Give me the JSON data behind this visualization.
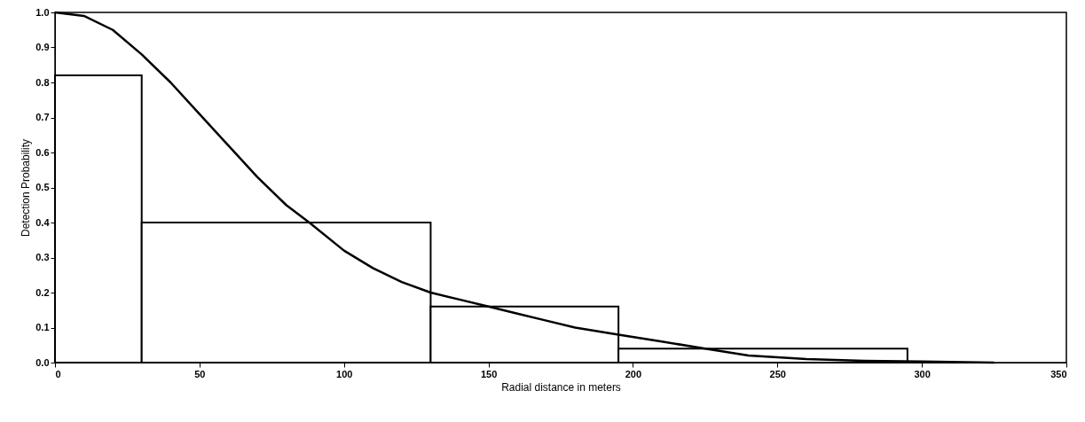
{
  "chart_data": {
    "type": "histogram",
    "xlabel": "Radial distance in meters",
    "ylabel": "Detection Probability",
    "bins": [
      0,
      30,
      130,
      195,
      295
    ],
    "values": [
      0.82,
      0.4,
      0.16,
      0.04
    ],
    "color": "#000000",
    "series": [
      {
        "type": "line",
        "color": "#000000",
        "x": [
          0,
          10,
          20,
          30,
          40,
          50,
          60,
          70,
          80,
          88,
          100,
          110,
          120,
          130,
          140,
          150,
          160,
          170,
          180,
          195,
          210,
          225,
          240,
          260,
          280,
          300,
          325
        ],
        "values": [
          1.0,
          0.99,
          0.95,
          0.88,
          0.8,
          0.71,
          0.62,
          0.53,
          0.45,
          0.4,
          0.32,
          0.27,
          0.23,
          0.2,
          0.18,
          0.16,
          0.14,
          0.12,
          0.1,
          0.08,
          0.06,
          0.04,
          0.02,
          0.01,
          0.005,
          0.003,
          0.0
        ]
      }
    ],
    "xlim": [
      0,
      350
    ],
    "xticks": [
      0,
      50,
      100,
      150,
      200,
      250,
      300,
      350
    ],
    "ylim": [
      0,
      1
    ],
    "yticks": [
      {
        "value": 0,
        "label": "0.0"
      },
      {
        "value": 0.1,
        "label": "0.1"
      },
      {
        "value": 0.2,
        "label": "0.2"
      },
      {
        "value": 0.3,
        "label": "0.3"
      },
      {
        "value": 0.4,
        "label": "0.4"
      },
      {
        "value": 0.5,
        "label": "0.5"
      },
      {
        "value": 0.6,
        "label": "0.6"
      },
      {
        "value": 0.7,
        "label": "0.7"
      },
      {
        "value": 0.8,
        "label": "0.8"
      },
      {
        "value": 0.9,
        "label": "0.9"
      },
      {
        "value": 1,
        "label": "1.0"
      }
    ],
    "grid": false
  }
}
